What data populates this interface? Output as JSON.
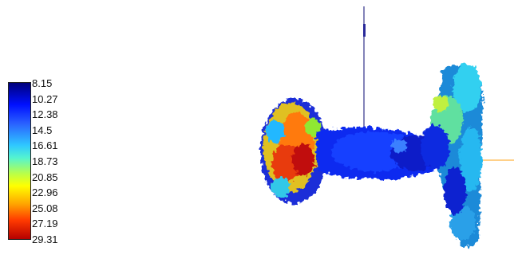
{
  "colorbar": {
    "ticks": [
      "8.15",
      "10.27",
      "12.38",
      "14.5",
      "16.61",
      "18.73",
      "20.85",
      "22.96",
      "25.08",
      "27.19",
      "29.31"
    ],
    "colors": [
      "#00007a",
      "#0010ff",
      "#2a60ff",
      "#2fc8ff",
      "#54f4d0",
      "#b8ff4a",
      "#ffff00",
      "#ffa000",
      "#ff3a00",
      "#b50000"
    ]
  },
  "scene": {
    "axis_color": "#3b3bd6",
    "orange_axis_color": "#ffb347"
  }
}
